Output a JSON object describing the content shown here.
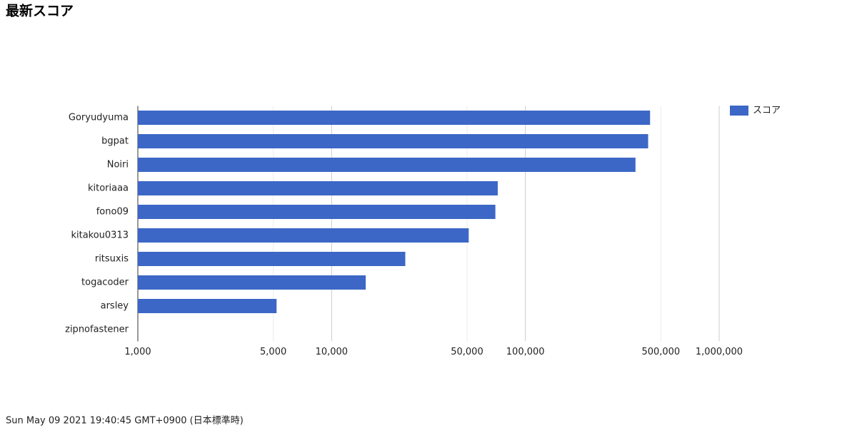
{
  "chart_data": {
    "type": "bar",
    "orientation": "horizontal",
    "title": "最新スコア",
    "categories": [
      "Goryudyuma",
      "bgpat",
      "Noiri",
      "kitoriaaa",
      "fono09",
      "kitakou0313",
      "ritsuxis",
      "togacoder",
      "arsley",
      "zipnofastener"
    ],
    "series": [
      {
        "name": "スコア",
        "color": "#3c67c6",
        "values": [
          440000,
          430000,
          370000,
          72000,
          70000,
          51000,
          24000,
          15000,
          5200,
          null
        ]
      }
    ],
    "xlim": [
      1000,
      1000000
    ],
    "log_scale": true,
    "grid": true,
    "legend": "right",
    "xticks": [
      {
        "value": 1000,
        "label": "1,000"
      },
      {
        "value": 5000,
        "label": "5,000"
      },
      {
        "value": 10000,
        "label": "10,000"
      },
      {
        "value": 50000,
        "label": "50,000"
      },
      {
        "value": 100000,
        "label": "100,000"
      },
      {
        "value": 500000,
        "label": "500,000"
      },
      {
        "value": 1000000,
        "label": "1,000,000"
      }
    ]
  },
  "timestamp": "Sun May 09 2021 19:40:45 GMT+0900 (日本標準時)"
}
